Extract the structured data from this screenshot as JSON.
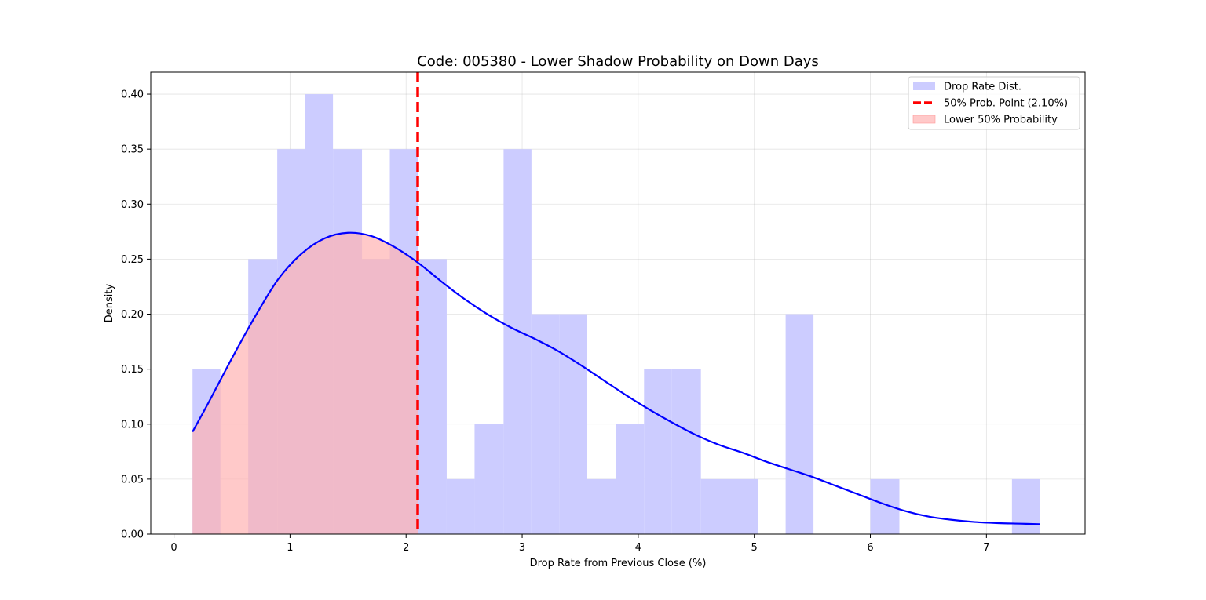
{
  "chart_data": {
    "type": "bar",
    "title": "Code: 005380 - Lower Shadow Probability on Down Days",
    "xlabel": "Drop Rate from Previous Close (%)",
    "ylabel": "Density",
    "xlim": [
      -0.2,
      7.85
    ],
    "ylim": [
      0,
      0.42
    ],
    "x_ticks": [
      0,
      1,
      2,
      3,
      4,
      5,
      6,
      7
    ],
    "y_ticks": [
      0.0,
      0.05,
      0.1,
      0.15,
      0.2,
      0.25,
      0.3,
      0.35,
      0.4
    ],
    "x_tick_labels": [
      "0",
      "1",
      "2",
      "3",
      "4",
      "5",
      "6",
      "7"
    ],
    "y_tick_labels": [
      "0.00",
      "0.05",
      "0.10",
      "0.15",
      "0.20",
      "0.25",
      "0.30",
      "0.35",
      "0.40"
    ],
    "grid": true,
    "legend_position": "top-right",
    "colors": {
      "histogram": "#ccccff",
      "kde": "#0000ff",
      "median_line": "#ff0000",
      "lower_fill": "#ffb2b2"
    },
    "histogram": {
      "name": "Drop Rate Dist.",
      "bins": [
        {
          "x0": 0.16,
          "x1": 0.4,
          "density": 0.15
        },
        {
          "x0": 0.4,
          "x1": 0.64,
          "density": 0.0
        },
        {
          "x0": 0.64,
          "x1": 0.89,
          "density": 0.25
        },
        {
          "x0": 0.89,
          "x1": 1.13,
          "density": 0.35
        },
        {
          "x0": 1.13,
          "x1": 1.37,
          "density": 0.4
        },
        {
          "x0": 1.37,
          "x1": 1.62,
          "density": 0.35
        },
        {
          "x0": 1.62,
          "x1": 1.86,
          "density": 0.25
        },
        {
          "x0": 1.86,
          "x1": 2.1,
          "density": 0.35
        },
        {
          "x0": 2.1,
          "x1": 2.35,
          "density": 0.25
        },
        {
          "x0": 2.35,
          "x1": 2.59,
          "density": 0.05
        },
        {
          "x0": 2.59,
          "x1": 2.84,
          "density": 0.1
        },
        {
          "x0": 2.84,
          "x1": 3.08,
          "density": 0.35
        },
        {
          "x0": 3.08,
          "x1": 3.32,
          "density": 0.2
        },
        {
          "x0": 3.32,
          "x1": 3.56,
          "density": 0.2
        },
        {
          "x0": 3.56,
          "x1": 3.81,
          "density": 0.05
        },
        {
          "x0": 3.81,
          "x1": 4.05,
          "density": 0.1
        },
        {
          "x0": 4.05,
          "x1": 4.29,
          "density": 0.15
        },
        {
          "x0": 4.29,
          "x1": 4.54,
          "density": 0.15
        },
        {
          "x0": 4.54,
          "x1": 4.78,
          "density": 0.05
        },
        {
          "x0": 4.78,
          "x1": 5.03,
          "density": 0.05
        },
        {
          "x0": 5.03,
          "x1": 5.27,
          "density": 0.0
        },
        {
          "x0": 5.27,
          "x1": 5.51,
          "density": 0.2
        },
        {
          "x0": 5.51,
          "x1": 5.76,
          "density": 0.0
        },
        {
          "x0": 5.76,
          "x1": 6.0,
          "density": 0.0
        },
        {
          "x0": 6.0,
          "x1": 6.25,
          "density": 0.05
        },
        {
          "x0": 6.25,
          "x1": 6.49,
          "density": 0.0
        },
        {
          "x0": 6.49,
          "x1": 6.73,
          "density": 0.0
        },
        {
          "x0": 6.73,
          "x1": 6.98,
          "density": 0.0
        },
        {
          "x0": 6.98,
          "x1": 7.22,
          "density": 0.0
        },
        {
          "x0": 7.22,
          "x1": 7.46,
          "density": 0.05
        }
      ]
    },
    "kde": {
      "x": [
        0.16,
        0.3,
        0.5,
        0.7,
        0.9,
        1.1,
        1.3,
        1.5,
        1.7,
        1.9,
        2.1,
        2.3,
        2.5,
        2.7,
        2.9,
        3.1,
        3.3,
        3.5,
        3.7,
        3.9,
        4.1,
        4.3,
        4.5,
        4.7,
        4.9,
        5.1,
        5.3,
        5.5,
        5.7,
        5.9,
        6.1,
        6.3,
        6.5,
        6.7,
        6.9,
        7.1,
        7.3,
        7.46
      ],
      "y": [
        0.093,
        0.12,
        0.16,
        0.198,
        0.232,
        0.255,
        0.269,
        0.274,
        0.271,
        0.261,
        0.247,
        0.23,
        0.214,
        0.2,
        0.188,
        0.178,
        0.167,
        0.154,
        0.14,
        0.126,
        0.113,
        0.101,
        0.09,
        0.081,
        0.074,
        0.066,
        0.059,
        0.052,
        0.044,
        0.036,
        0.028,
        0.021,
        0.016,
        0.013,
        0.011,
        0.01,
        0.0095,
        0.009
      ]
    },
    "median": {
      "x": 2.1
    },
    "legend": [
      {
        "label": "Drop Rate Dist.",
        "kind": "patch",
        "color": "#ccccff"
      },
      {
        "label": "50% Prob. Point (2.10%)",
        "kind": "dashed-line",
        "color": "#ff0000"
      },
      {
        "label": "Lower 50% Probability",
        "kind": "patch",
        "color": "#ffb2b2"
      }
    ]
  }
}
